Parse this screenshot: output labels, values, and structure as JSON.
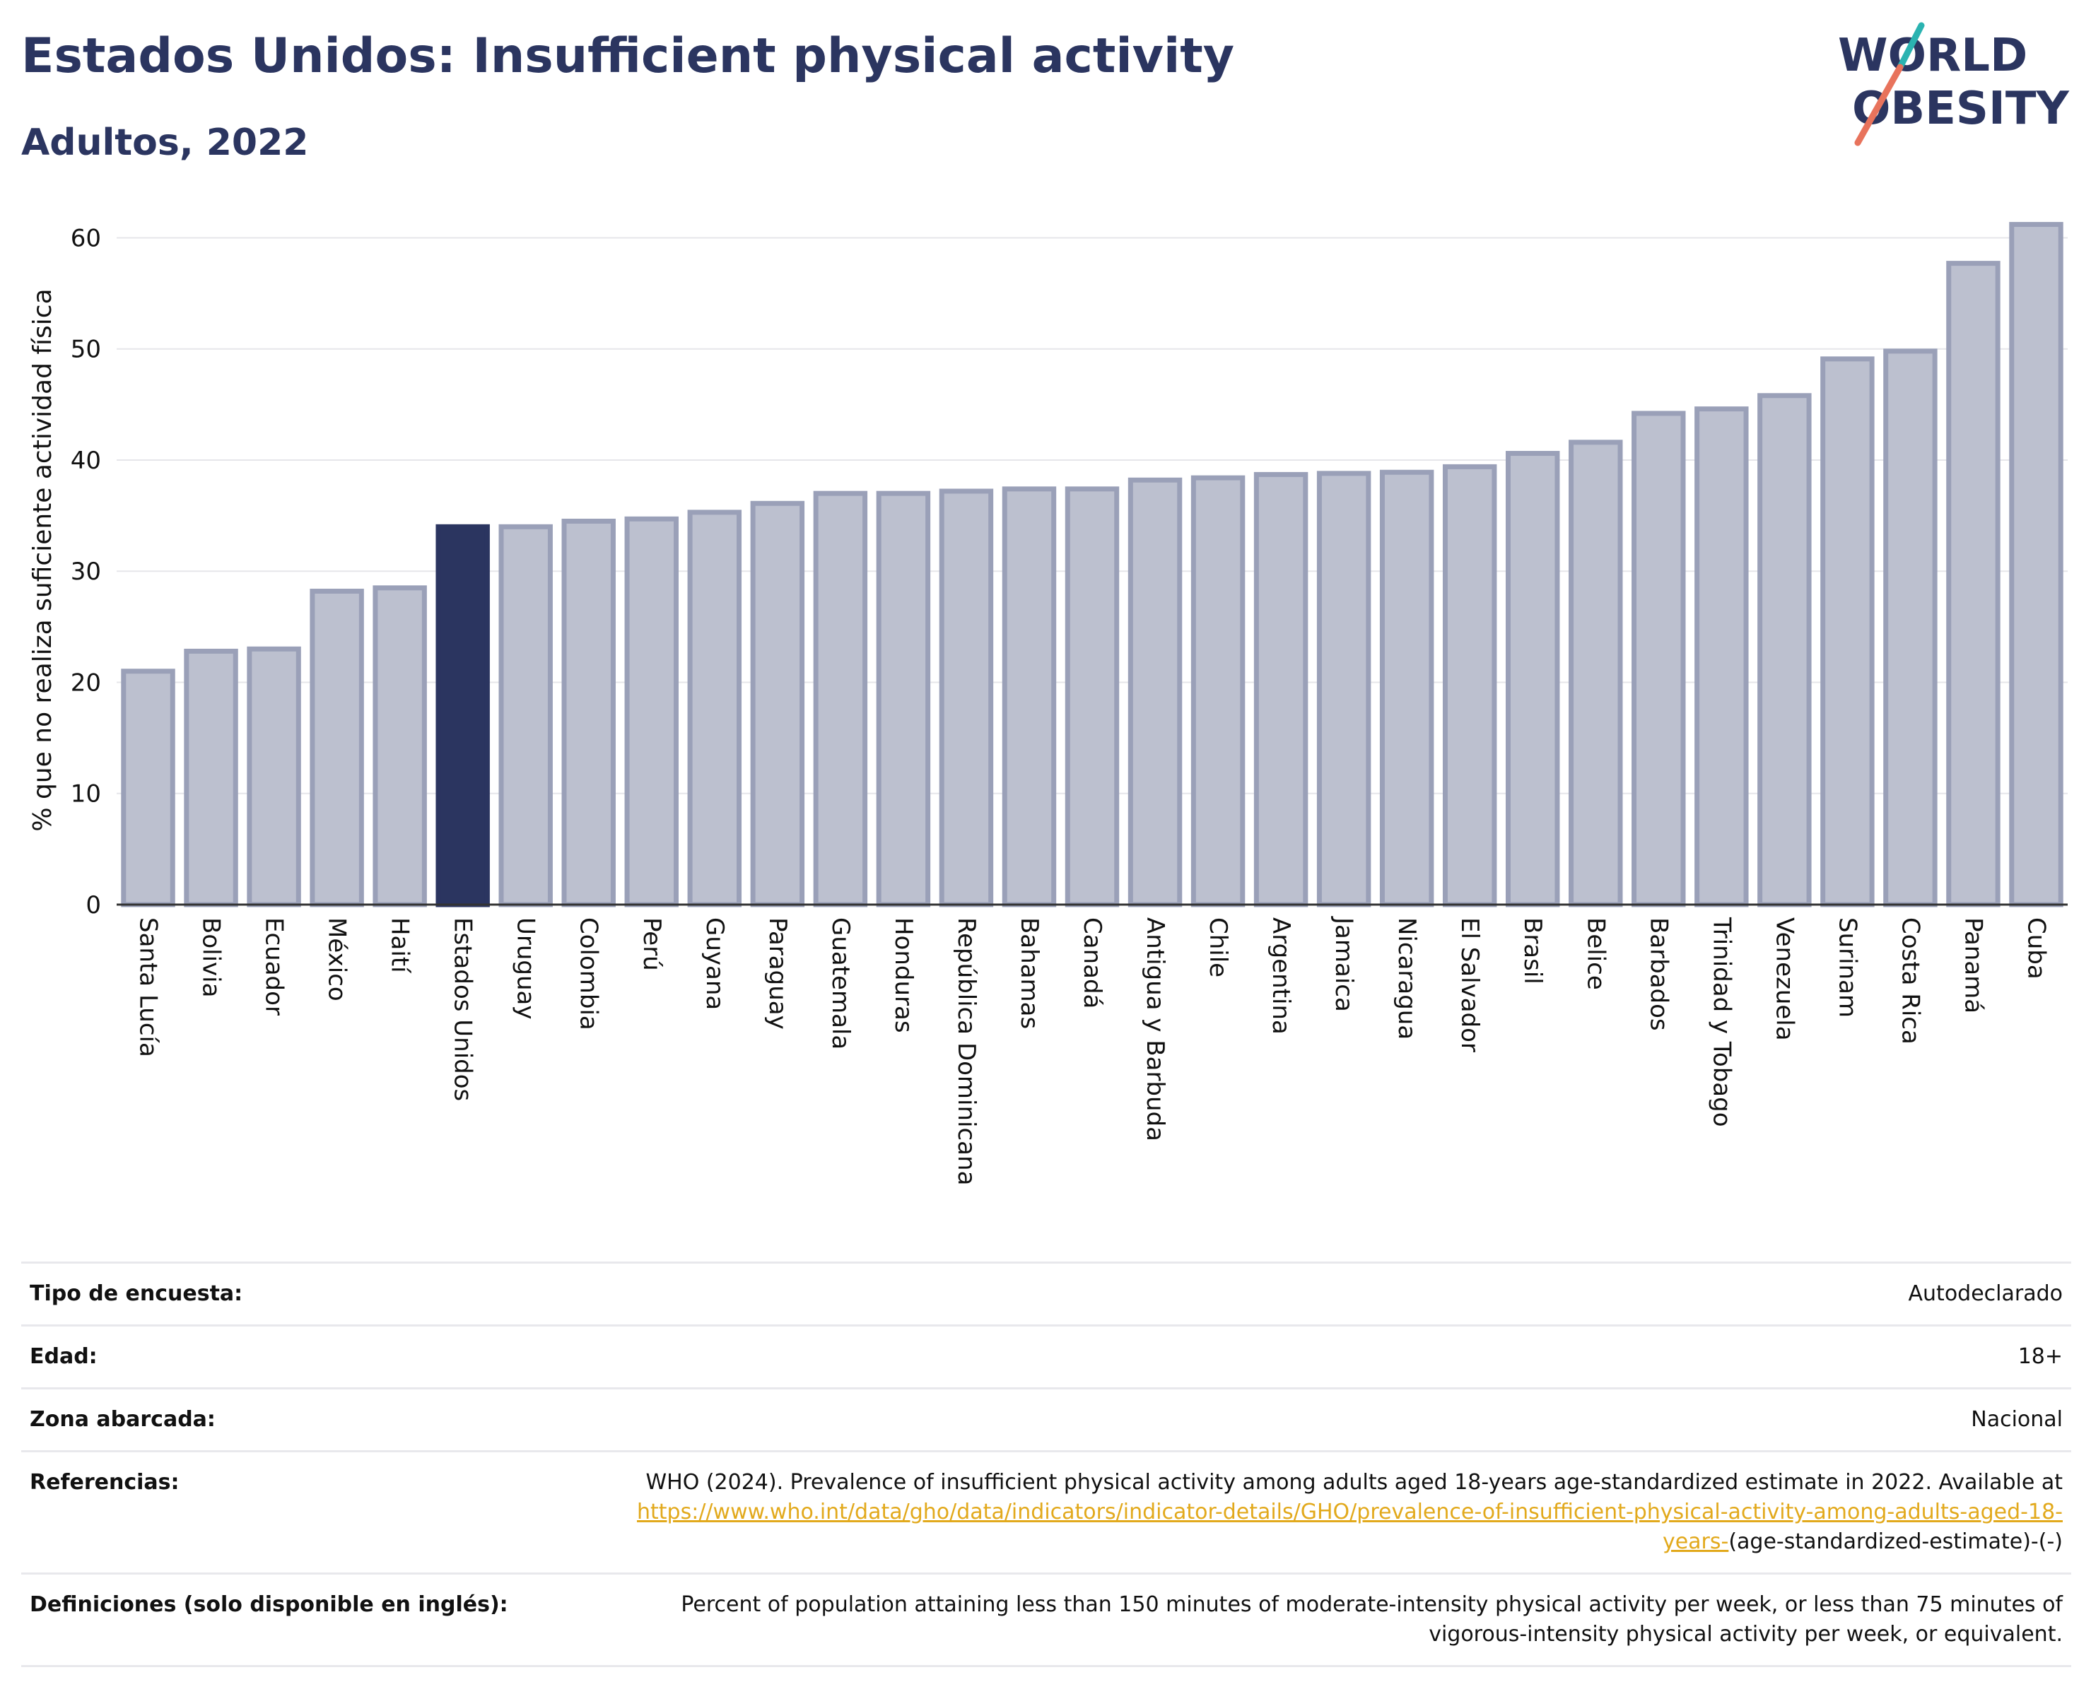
{
  "header": {
    "title": "Estados Unidos: Insufficient physical activity",
    "subtitle": "Adultos, 2022"
  },
  "logo": {
    "line1": "WORLD",
    "line2": "OBESITY",
    "colors": {
      "text": "#2b3560",
      "teal": "#2bb3b1",
      "coral": "#e8735c"
    }
  },
  "colors": {
    "bar": "#bcc0cf",
    "bar_border": "#9aa0b8",
    "highlight": "#2b3560",
    "grid": "#e6e6ea",
    "axis": "#333333"
  },
  "chart_data": {
    "type": "bar",
    "ylabel": "% que no realiza suficiente actividad física",
    "xlabel": "",
    "ylim": [
      0,
      62
    ],
    "yticks": [
      0,
      10,
      20,
      30,
      40,
      50,
      60
    ],
    "grid": true,
    "highlight": "Estados Unidos",
    "categories": [
      "Santa Lucía",
      "Bolivia",
      "Ecuador",
      "México",
      "Haití",
      "Estados Unidos",
      "Uruguay",
      "Colombia",
      "Perú",
      "Guyana",
      "Paraguay",
      "Guatemala",
      "Honduras",
      "República Dominicana",
      "Bahamas",
      "Canadá",
      "Antigua y Barbuda",
      "Chile",
      "Argentina",
      "Jamaica",
      "Nicaragua",
      "El Salvador",
      "Brasil",
      "Belice",
      "Barbados",
      "Trinidad y Tobago",
      "Venezuela",
      "Surinam",
      "Costa Rica",
      "Panamá",
      "Cuba"
    ],
    "values": [
      21.0,
      22.8,
      23.0,
      28.2,
      28.5,
      34.0,
      34.0,
      34.5,
      34.7,
      35.3,
      36.1,
      37.0,
      37.0,
      37.2,
      37.4,
      37.4,
      38.2,
      38.4,
      38.7,
      38.8,
      38.9,
      39.4,
      40.6,
      41.6,
      44.2,
      44.6,
      45.8,
      49.1,
      49.8,
      57.7,
      61.2
    ]
  },
  "meta": [
    {
      "label": "Tipo de encuesta:",
      "value": "Autodeclarado"
    },
    {
      "label": "Edad:",
      "value": "18+"
    },
    {
      "label": "Zona abarcada:",
      "value": "Nacional"
    },
    {
      "label": "Referencias:",
      "value": "WHO (2024). Prevalence of insufficient physical activity among adults aged 18-years age-standardized estimate in 2022. Available at",
      "link": "https://www.who.int/data/gho/data/indicators/indicator-details/GHO/prevalence-of-insufficient-physical-activity-among-adults-aged-18-years-",
      "suffix": "(age-standardized-estimate)-(-)"
    },
    {
      "label": "Definiciones (solo disponible en inglés):",
      "value": "Percent of population attaining less than 150 minutes of moderate-intensity physical activity per week, or less than 75 minutes of vigorous-intensity physical activity per week, or equivalent."
    }
  ]
}
